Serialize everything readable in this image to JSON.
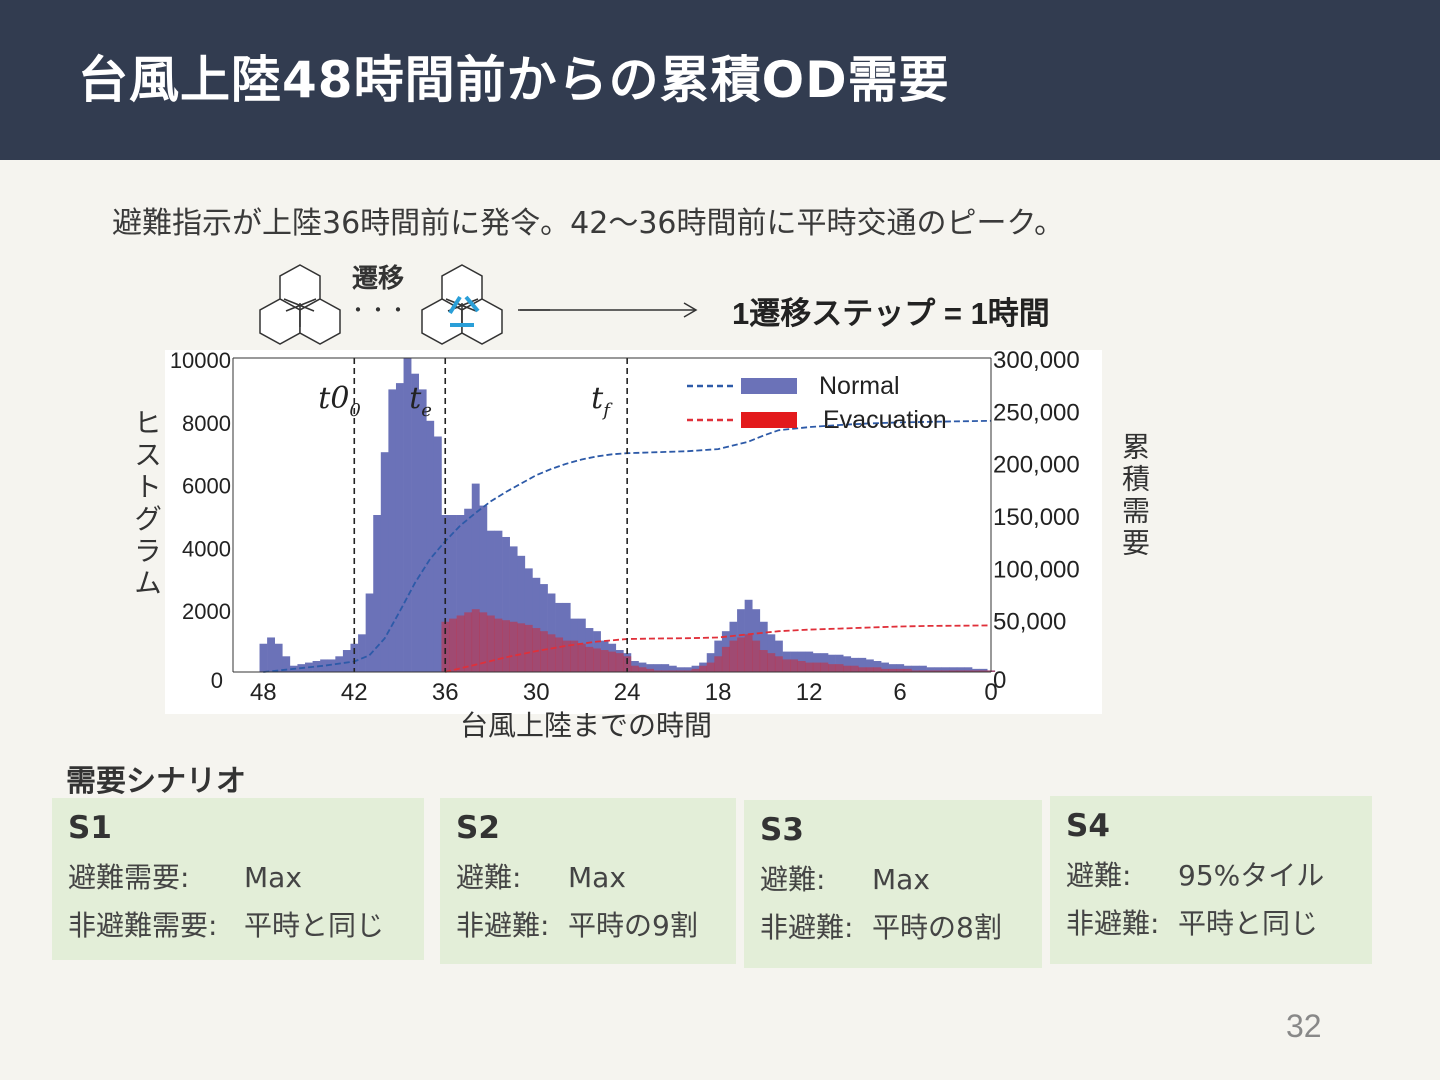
{
  "title": "台風上陸48時間前からの累積OD需要",
  "subtitle": "避難指示が上陸36時間前に発令。42〜36時間前に平時交通のピーク。",
  "diagram": {
    "transition_label": "遷移",
    "dots": "・・・",
    "step_text": "1遷移ステップ = 1時間"
  },
  "chart_data": {
    "type": "bar",
    "xlabel": "台風上陸までの時間",
    "ylabel_left": "ヒストグラム",
    "ylabel_right": "累積需要",
    "x_ticks": [
      48,
      42,
      36,
      30,
      24,
      18,
      12,
      6,
      0
    ],
    "x_range": [
      50,
      0
    ],
    "y_left_ticks": [
      0,
      2000,
      4000,
      6000,
      8000,
      10000
    ],
    "y_left_range": [
      0,
      10000
    ],
    "y_right_ticks": [
      "0",
      "50,000",
      "100,000",
      "150,000",
      "200,000",
      "250,000",
      "300,000"
    ],
    "y_right_range": [
      0,
      300000
    ],
    "vlines": [
      {
        "label": "t0",
        "sub": "0",
        "x": 42
      },
      {
        "label": "t",
        "sub": "e",
        "x": 36
      },
      {
        "label": "t",
        "sub": "f",
        "x": 24
      }
    ],
    "legend": {
      "position": "top-right",
      "entries": [
        "Normal",
        "Evacuation"
      ]
    },
    "colors": {
      "normal_bar": "#6b72b8",
      "evac_bar": "#e31a1c",
      "normal_line": "#2d5aa8",
      "evac_line": "#e0303a"
    },
    "normal_hist": {
      "x": [
        48,
        47.5,
        47,
        46.5,
        46,
        45.5,
        45,
        44.5,
        44,
        43.5,
        43,
        42.5,
        42,
        41.5,
        41,
        40.5,
        40,
        39.5,
        39,
        38.5,
        38,
        37.5,
        37,
        36.5,
        36,
        35.5,
        35,
        34.5,
        34,
        33.5,
        33,
        32.5,
        32,
        31.5,
        31,
        30.5,
        30,
        29.5,
        29,
        28.5,
        28,
        27.5,
        27,
        26.5,
        26,
        25.5,
        25,
        24.5,
        24,
        23.5,
        23,
        22.5,
        22,
        21.5,
        21,
        20.5,
        20,
        19.5,
        19,
        18.5,
        18,
        17.5,
        17,
        16.5,
        16,
        15.5,
        15,
        14.5,
        14,
        13.5,
        13,
        12.5,
        12,
        11.5,
        11,
        10.5,
        10,
        9.5,
        9,
        8.5,
        8,
        7.5,
        7,
        6.5,
        6,
        5.5,
        5,
        4.5,
        4,
        3.5,
        3,
        2.5,
        2,
        1.5,
        1,
        0.5,
        0
      ],
      "values": [
        900,
        1100,
        900,
        500,
        200,
        250,
        300,
        350,
        400,
        400,
        500,
        700,
        900,
        1200,
        2500,
        5000,
        7000,
        9000,
        9200,
        10000,
        9500,
        9000,
        8000,
        7500,
        5000,
        5000,
        5000,
        5200,
        6000,
        5300,
        4500,
        4500,
        4300,
        4000,
        3700,
        3300,
        3000,
        2800,
        2500,
        2200,
        2200,
        1700,
        1700,
        1400,
        1300,
        1000,
        900,
        700,
        600,
        350,
        300,
        250,
        250,
        250,
        200,
        150,
        150,
        200,
        300,
        600,
        1000,
        1300,
        1600,
        2000,
        2300,
        2000,
        1600,
        1200,
        1000,
        650,
        650,
        650,
        650,
        600,
        600,
        550,
        550,
        500,
        450,
        450,
        400,
        350,
        300,
        250,
        250,
        200,
        200,
        200,
        150,
        150,
        150,
        150,
        150,
        150,
        100,
        100,
        50
      ]
    },
    "evac_hist": {
      "x": [
        36,
        35.5,
        35,
        34.5,
        34,
        33.5,
        33,
        32.5,
        32,
        31.5,
        31,
        30.5,
        30,
        29.5,
        29,
        28.5,
        28,
        27.5,
        27,
        26.5,
        26,
        25.5,
        25,
        24.5,
        24,
        23.5,
        23,
        22.5,
        22,
        21.5,
        21,
        20.5,
        20,
        19.5,
        19,
        18.5,
        18,
        17.5,
        17,
        16.5,
        16,
        15.5,
        15,
        14.5,
        14,
        13.5,
        13,
        12.5,
        12,
        11.5,
        11,
        10.5,
        10,
        9.5,
        9,
        8.5,
        8,
        7.5,
        7,
        6.5,
        6,
        5.5,
        5,
        4.5,
        4,
        3.5,
        3,
        2.5,
        2,
        1.5,
        1,
        0.5,
        0
      ],
      "values": [
        1600,
        1700,
        1800,
        1900,
        2000,
        1900,
        1800,
        1700,
        1650,
        1600,
        1550,
        1500,
        1400,
        1300,
        1200,
        1100,
        1000,
        1000,
        900,
        800,
        750,
        700,
        650,
        600,
        500,
        200,
        150,
        100,
        50,
        50,
        50,
        50,
        50,
        100,
        200,
        300,
        500,
        800,
        1000,
        1100,
        1200,
        1000,
        700,
        600,
        500,
        400,
        400,
        350,
        300,
        300,
        300,
        250,
        250,
        200,
        200,
        150,
        150,
        150,
        100,
        100,
        100,
        100,
        50,
        50,
        50,
        50,
        50,
        50,
        50,
        50,
        50,
        50,
        50
      ]
    },
    "normal_cumulative": {
      "x": [
        48,
        46,
        44,
        43,
        42,
        41,
        40,
        39,
        38,
        37,
        36,
        35,
        34,
        33,
        32,
        31,
        30,
        29,
        28,
        27,
        26,
        25,
        24,
        22,
        20,
        18,
        16,
        15,
        14,
        12,
        10,
        8,
        6,
        4,
        2,
        0
      ],
      "values": [
        0,
        3000,
        6000,
        8000,
        10000,
        16000,
        32000,
        58000,
        85000,
        108000,
        125000,
        140000,
        152000,
        163000,
        172000,
        180000,
        188000,
        194000,
        199000,
        203000,
        206000,
        208000,
        209000,
        210000,
        211000,
        213000,
        220000,
        226000,
        231000,
        234000,
        236000,
        237500,
        238500,
        239000,
        239500,
        240000
      ]
    },
    "evac_cumulative": {
      "x": [
        36,
        34,
        32,
        30,
        28,
        26,
        24,
        22,
        20,
        18,
        16,
        14,
        12,
        10,
        8,
        6,
        4,
        2,
        0
      ],
      "values": [
        0,
        7000,
        14000,
        20000,
        25000,
        29000,
        31500,
        32000,
        32300,
        33000,
        36000,
        39000,
        40500,
        41500,
        42500,
        43500,
        44000,
        44200,
        44500
      ]
    }
  },
  "scenario_heading": "需要シナリオ",
  "scenarios": [
    {
      "name": "S1",
      "line1_label": "避難需要:",
      "line1_value": "Max",
      "line2_label": "非避難需要:",
      "line2_value": "平時と同じ"
    },
    {
      "name": "S2",
      "line1_label": "避難:",
      "line1_value": "Max",
      "line2_label": "非避難:",
      "line2_value": "平時の9割"
    },
    {
      "name": "S3",
      "line1_label": "避難:",
      "line1_value": "Max",
      "line2_label": "非避難:",
      "line2_value": "平時の8割"
    },
    {
      "name": "S4",
      "line1_label": "避難:",
      "line1_value": "95%タイル",
      "line2_label": "非避難:",
      "line2_value": "平時と同じ"
    }
  ],
  "page_number": "32"
}
